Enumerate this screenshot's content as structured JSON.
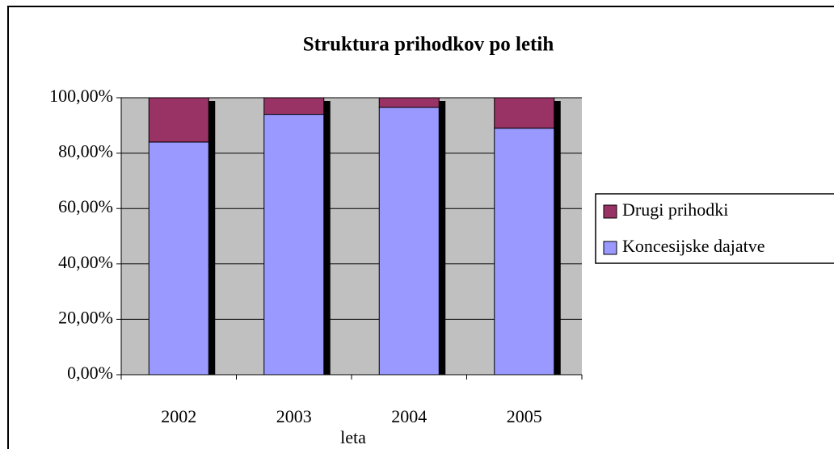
{
  "chart_data": {
    "type": "stacked_bar",
    "title": "Struktura prihodkov po letih",
    "x_label": "leta",
    "categories": [
      "2002",
      "2003",
      "2004",
      "2005"
    ],
    "series": [
      {
        "name": "Koncesijske dajatve",
        "color": "#9999ff",
        "values": [
          84,
          94,
          96.5,
          89
        ]
      },
      {
        "name": "Drugi prihodki",
        "color": "#993366",
        "values": [
          16,
          6,
          3.5,
          11
        ]
      }
    ],
    "ylim": [
      0,
      100
    ],
    "yticks": [
      {
        "value": 0,
        "label": "0,00%"
      },
      {
        "value": 20,
        "label": "20,00%"
      },
      {
        "value": 40,
        "label": "40,00%"
      },
      {
        "value": 60,
        "label": "60,00%"
      },
      {
        "value": 80,
        "label": "80,00%"
      },
      {
        "value": 100,
        "label": "100,00%"
      }
    ],
    "grid": true,
    "legend": "right"
  }
}
